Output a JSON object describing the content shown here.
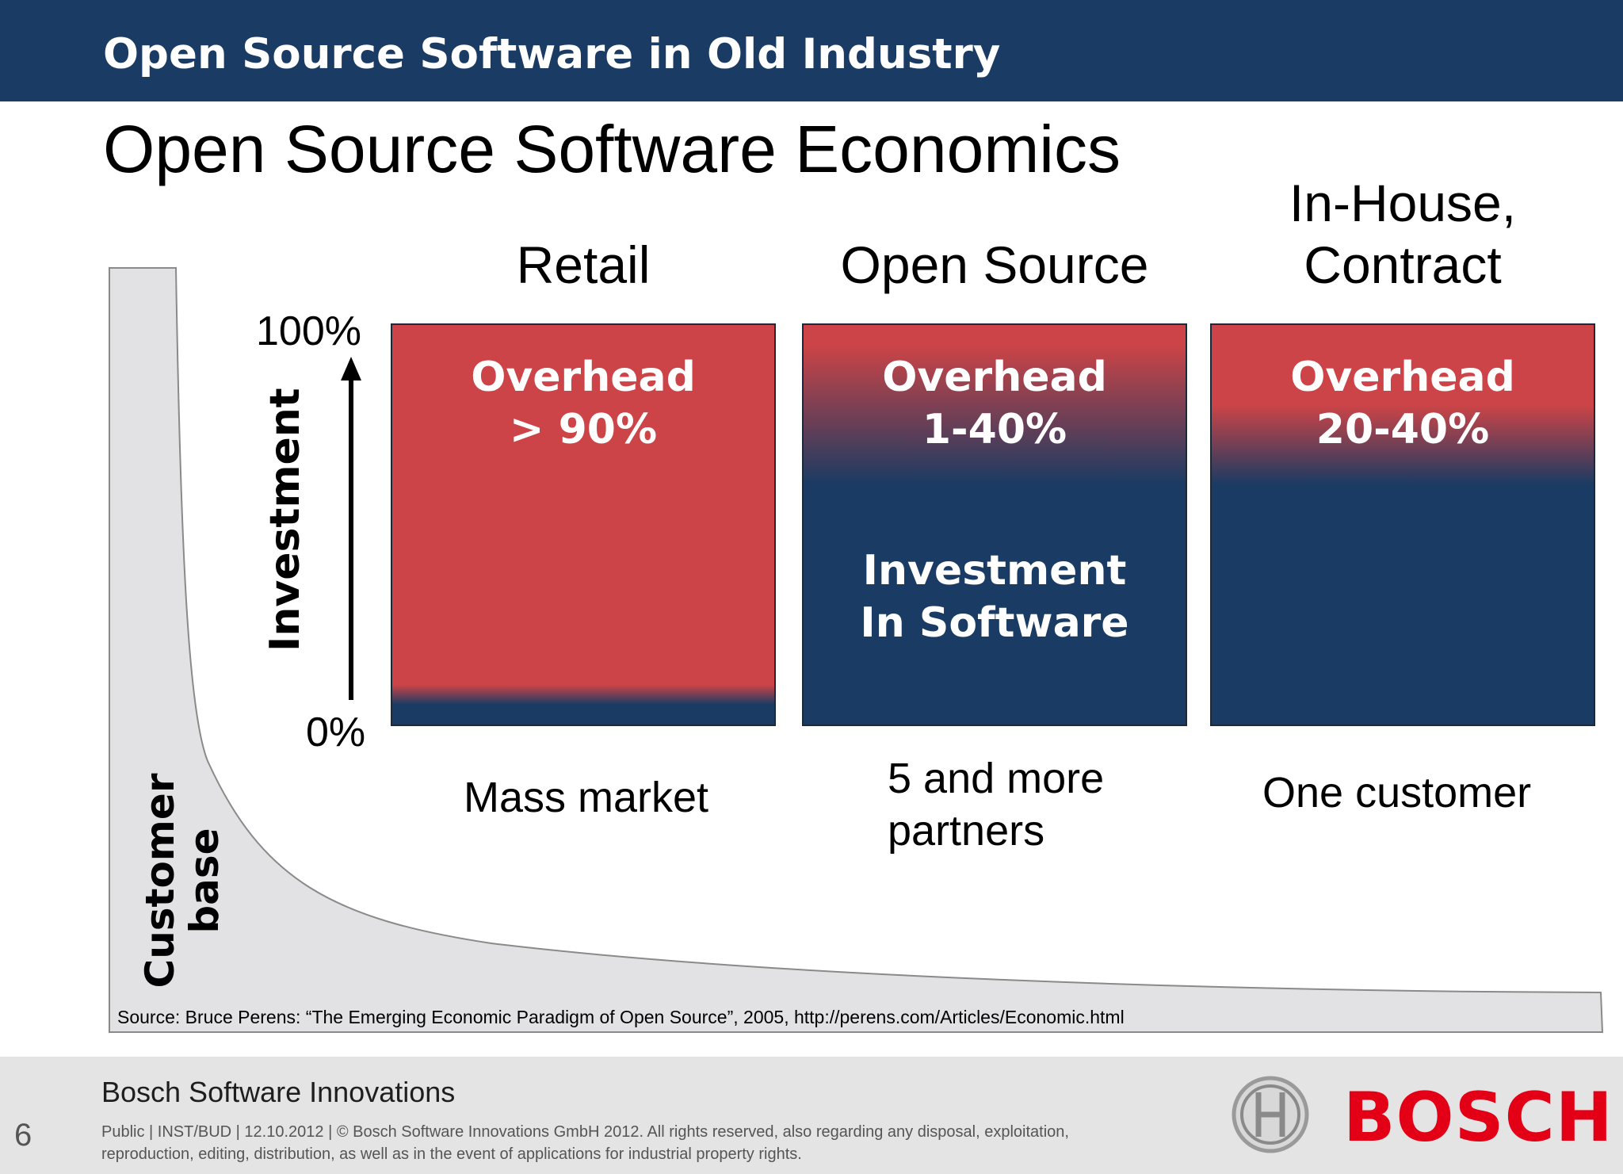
{
  "header": {
    "title": "Open Source Software in Old Industry"
  },
  "slide": {
    "title": "Open Source Software Economics"
  },
  "axis": {
    "label": "Investment",
    "top_tick": "100%",
    "bottom_tick": "0%"
  },
  "customer_axis": {
    "line1": "Customer",
    "line2": "base"
  },
  "columns": [
    {
      "heading": "Retail",
      "overhead_line1": "Overhead",
      "overhead_line2": "> 90%",
      "segment_label": "Mass market",
      "overhead_percent": 90
    },
    {
      "heading": "Open Source",
      "overhead_line1": "Overhead",
      "overhead_line2": "1-40%",
      "investment_line1": "Investment",
      "investment_line2": "In Software",
      "segment_line1": "5 and more",
      "segment_line2": "partners",
      "overhead_percent_range": [
        1,
        40
      ]
    },
    {
      "heading_line1": "In-House,",
      "heading_line2": "Contract",
      "overhead_line1": "Overhead",
      "overhead_line2": "20-40%",
      "segment_label": "One customer",
      "overhead_percent_range": [
        20,
        40
      ]
    }
  ],
  "source": "Source: Bruce Perens: “The Emerging Economic Paradigm of Open Source”, 2005, http://perens.com/Articles/Economic.html",
  "footer": {
    "page_number": "6",
    "company": "Bosch Software Innovations",
    "legal": "Public | INST/BUD | 12.10.2012 | © Bosch Software Innovations GmbH 2012. All rights reserved, also regarding any disposal, exploitation, reproduction, editing, distribution, as well as in the event of applications for industrial property rights.",
    "logo_text": "BOSCH"
  },
  "colors": {
    "header": "#1a3b63",
    "overhead_red": "#cc4447",
    "investment_blue": "#1a3b63",
    "brand_red": "#e30016",
    "footer_gray": "#e4e4e4"
  }
}
